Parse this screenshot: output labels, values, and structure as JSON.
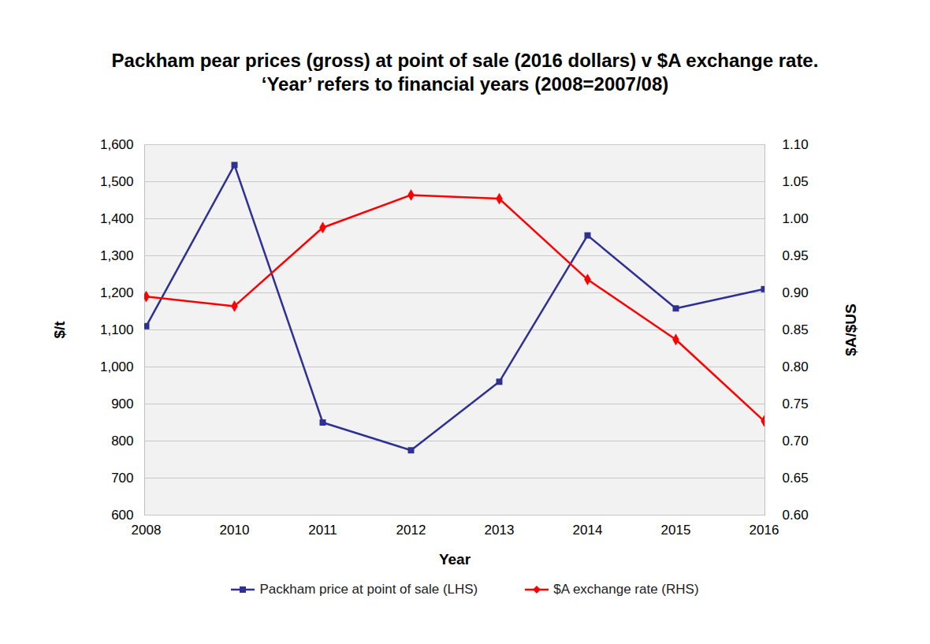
{
  "chart_data": {
    "type": "line",
    "title": "Packham pear prices (gross) at point of sale (2016 dollars) v $A exchange rate.  ‘Year’ refers to financial years (2008=2007/08)",
    "x_label": "Year",
    "y_label": "$/t",
    "y2_label": "$A/$US",
    "categories": [
      "2008",
      "2010",
      "2011",
      "2012",
      "2013",
      "2014",
      "2015",
      "2016"
    ],
    "series": [
      {
        "name": "Packham price at point of sale (LHS)",
        "color": "#2e3192",
        "marker": "square",
        "values": [
          1110,
          1545,
          850,
          775,
          960,
          1355,
          1158,
          1210
        ]
      },
      {
        "name": "$A exchange rate (RHS)",
        "color": "#ff0000",
        "marker": "diamond",
        "axis": "y2",
        "values": [
          0.895,
          0.882,
          0.988,
          1.032,
          1.027,
          0.918,
          0.837,
          0.727
        ]
      }
    ],
    "ylim": [
      600,
      1600
    ],
    "yticks": [
      600,
      700,
      800,
      900,
      {
        "value": 1000,
        "label": "1,000"
      },
      {
        "value": 1100,
        "label": "1,100"
      },
      {
        "value": 1200,
        "label": "1,200"
      },
      {
        "value": 1300,
        "label": "1,300"
      },
      {
        "value": 1400,
        "label": "1,400"
      },
      {
        "value": 1500,
        "label": "1,500"
      },
      {
        "value": 1600,
        "label": "1,600"
      }
    ],
    "y2lim": [
      0.6,
      1.1
    ],
    "y2ticks": [
      {
        "value": 0.6,
        "label": "0.60"
      },
      0.65,
      {
        "value": 0.7,
        "label": "0.70"
      },
      0.75,
      {
        "value": 0.8,
        "label": "0.80"
      },
      0.85,
      {
        "value": 0.9,
        "label": "0.90"
      },
      0.95,
      {
        "value": 1.0,
        "label": "1.00"
      },
      1.05,
      {
        "value": 1.1,
        "label": "1.10"
      }
    ],
    "grid": true,
    "legend": "bottom"
  }
}
